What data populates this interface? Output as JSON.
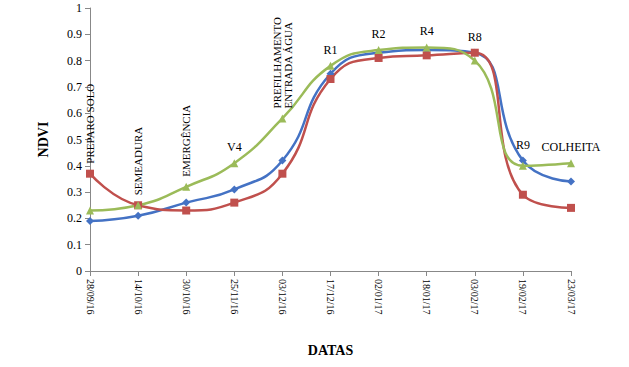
{
  "chart_data": {
    "type": "line",
    "categories": [
      "28/09/16",
      "14/10/16",
      "30/10/16",
      "25/11/16",
      "03/12/16",
      "17/12/16",
      "02/01/17",
      "18/01/17",
      "03/02/17",
      "19/02/17",
      "23/03/17"
    ],
    "series": [
      {
        "color": "#4472C4",
        "marker": "diamond",
        "line_style": "smooth",
        "values": [
          0.19,
          0.21,
          0.26,
          0.31,
          0.42,
          0.75,
          0.83,
          0.84,
          0.83,
          0.42,
          0.34
        ]
      },
      {
        "color": "#C0504D",
        "marker": "square",
        "line_style": "smooth",
        "values": [
          0.37,
          0.25,
          0.23,
          0.26,
          0.37,
          0.73,
          0.81,
          0.82,
          0.83,
          0.29,
          0.24
        ]
      },
      {
        "color": "#9BBB59",
        "marker": "triangle",
        "line_style": "smooth",
        "values": [
          0.23,
          0.25,
          0.32,
          0.41,
          0.58,
          0.78,
          0.84,
          0.85,
          0.8,
          0.4,
          0.41
        ]
      }
    ],
    "x_label": "DATAS",
    "y_label": "NDVI",
    "ylim": [
      0,
      1
    ],
    "yticks": [
      0,
      0.1,
      0.2,
      0.3,
      0.4,
      0.5,
      0.6,
      0.7,
      0.8,
      0.9,
      1
    ],
    "grid": false,
    "annotations": [
      {
        "text": "PREPARO SOLO",
        "x": "28/09/16"
      },
      {
        "text": "SEMEADURA",
        "x": "14/10/16"
      },
      {
        "text": "EMERGÊNCIA",
        "x": "30/10/16"
      },
      {
        "text": "V4",
        "x": "25/11/16"
      },
      {
        "text": "PREFILHAMENTO\nENTRADA ÁGUA",
        "x": "03/12/16"
      },
      {
        "text": "R1",
        "x": "17/12/16"
      },
      {
        "text": "R2",
        "x": "02/01/17"
      },
      {
        "text": "R4",
        "x": "18/01/17"
      },
      {
        "text": "R8",
        "x": "03/02/17"
      },
      {
        "text": "R9",
        "x": "19/02/17"
      },
      {
        "text": "COLHEITA",
        "x": "23/03/17"
      }
    ]
  }
}
